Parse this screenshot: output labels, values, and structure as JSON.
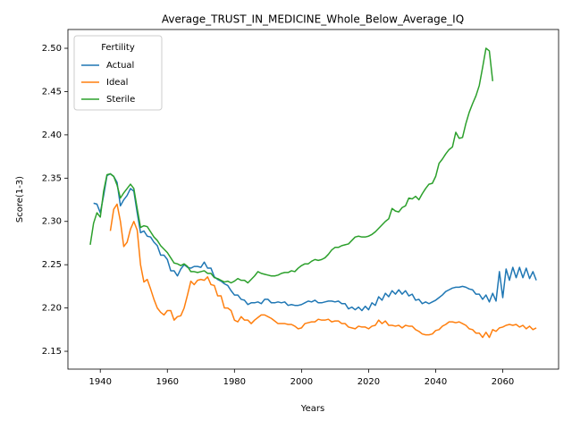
{
  "chart_data": {
    "type": "line",
    "title": "Average_TRUST_IN_MEDICINE_Whole_Below_Average_IQ",
    "xlabel": "Years",
    "ylabel": "Score(1-3)",
    "legend_title": "Fertility",
    "legend": "upper left",
    "xlim": [
      1930.35,
      2076.65
    ],
    "ylim": [
      2.1294,
      2.5217
    ],
    "xticks": [
      1940,
      1960,
      1980,
      2000,
      2020,
      2040,
      2060
    ],
    "yticks": [
      2.15,
      {
        "value": 2.2,
        "label": "2.20"
      },
      2.25,
      {
        "value": 2.3,
        "label": "2.30"
      },
      2.35,
      {
        "value": 2.4,
        "label": "2.40"
      },
      2.45,
      {
        "value": 2.5,
        "label": "2.50"
      }
    ],
    "x": [
      1937,
      1938,
      1939,
      1940,
      1941,
      1942,
      1943,
      1944,
      1945,
      1946,
      1947,
      1948,
      1949,
      1950,
      1951,
      1952,
      1953,
      1954,
      1955,
      1956,
      1957,
      1958,
      1959,
      1960,
      1961,
      1962,
      1963,
      1964,
      1965,
      1966,
      1967,
      1968,
      1969,
      1970,
      1971,
      1972,
      1973,
      1974,
      1975,
      1976,
      1977,
      1978,
      1979,
      1980,
      1981,
      1982,
      1983,
      1984,
      1985,
      1986,
      1987,
      1988,
      1989,
      1990,
      1991,
      1992,
      1993,
      1994,
      1995,
      1996,
      1997,
      1998,
      1999,
      2000,
      2001,
      2002,
      2003,
      2004,
      2005,
      2006,
      2007,
      2008,
      2009,
      2010,
      2011,
      2012,
      2013,
      2014,
      2015,
      2016,
      2017,
      2018,
      2019,
      2020,
      2021,
      2022,
      2023,
      2024,
      2025,
      2026,
      2027,
      2028,
      2029,
      2030,
      2031,
      2032,
      2033,
      2034,
      2035,
      2036,
      2037,
      2038,
      2039,
      2040,
      2041,
      2042,
      2043,
      2044,
      2045,
      2046,
      2047,
      2048,
      2049,
      2050,
      2051,
      2052,
      2053,
      2054,
      2055,
      2056,
      2057,
      2058,
      2059,
      2060,
      2061,
      2062,
      2063,
      2064,
      2065,
      2066,
      2067,
      2068,
      2069,
      2070
    ],
    "series": [
      {
        "name": "Actual",
        "color": "#1f77b4",
        "values": [
          null,
          2.321,
          2.32,
          2.31,
          2.33,
          2.353,
          2.355,
          2.352,
          2.345,
          2.318,
          2.325,
          2.33,
          2.338,
          2.335,
          2.31,
          2.287,
          2.289,
          2.283,
          2.282,
          2.276,
          2.272,
          2.261,
          2.261,
          2.256,
          2.243,
          2.243,
          2.237,
          2.245,
          2.25,
          2.247,
          2.246,
          2.248,
          2.248,
          2.247,
          2.253,
          2.246,
          2.246,
          2.236,
          2.233,
          2.231,
          2.228,
          2.226,
          2.22,
          2.215,
          2.215,
          2.21,
          2.209,
          2.204,
          2.206,
          2.206,
          2.207,
          2.205,
          2.21,
          2.21,
          2.206,
          2.206,
          2.207,
          2.206,
          2.207,
          2.203,
          2.204,
          2.203,
          2.203,
          2.204,
          2.206,
          2.208,
          2.207,
          2.209,
          2.206,
          2.206,
          2.207,
          2.208,
          2.208,
          2.207,
          2.208,
          2.205,
          2.205,
          2.199,
          2.201,
          2.198,
          2.201,
          2.197,
          2.202,
          2.198,
          2.206,
          2.203,
          2.213,
          2.209,
          2.217,
          2.213,
          2.22,
          2.216,
          2.221,
          2.216,
          2.22,
          2.214,
          2.216,
          2.209,
          2.21,
          2.205,
          2.207,
          2.205,
          2.207,
          2.209,
          2.212,
          2.215,
          2.219,
          2.221,
          2.223,
          2.224,
          2.224,
          2.225,
          2.224,
          2.222,
          2.221,
          2.216,
          2.216,
          2.21,
          2.215,
          2.207,
          2.217,
          2.208,
          2.242,
          2.212,
          2.245,
          2.232,
          2.247,
          2.235,
          2.247,
          2.235,
          2.246,
          2.234,
          2.242,
          2.232
        ]
      },
      {
        "name": "Ideal",
        "color": "#ff7f0e",
        "values": [
          null,
          null,
          null,
          null,
          null,
          null,
          2.289,
          2.314,
          2.32,
          2.3,
          2.271,
          2.276,
          2.291,
          2.3,
          2.29,
          2.25,
          2.23,
          2.233,
          2.222,
          2.21,
          2.2,
          2.195,
          2.192,
          2.197,
          2.197,
          2.186,
          2.19,
          2.191,
          2.2,
          2.215,
          2.231,
          2.227,
          2.232,
          2.233,
          2.232,
          2.236,
          2.227,
          2.226,
          2.214,
          2.214,
          2.2,
          2.2,
          2.197,
          2.186,
          2.184,
          2.19,
          2.186,
          2.186,
          2.182,
          2.186,
          2.189,
          2.192,
          2.192,
          2.19,
          2.188,
          2.185,
          2.182,
          2.182,
          2.182,
          2.181,
          2.181,
          2.179,
          2.176,
          2.177,
          2.182,
          2.183,
          2.184,
          2.184,
          2.187,
          2.186,
          2.186,
          2.187,
          2.184,
          2.185,
          2.185,
          2.182,
          2.182,
          2.178,
          2.177,
          2.176,
          2.179,
          2.178,
          2.178,
          2.176,
          2.179,
          2.18,
          2.186,
          2.182,
          2.185,
          2.18,
          2.18,
          2.179,
          2.18,
          2.177,
          2.18,
          2.179,
          2.179,
          2.175,
          2.173,
          2.17,
          2.169,
          2.169,
          2.17,
          2.174,
          2.175,
          2.179,
          2.181,
          2.184,
          2.184,
          2.183,
          2.184,
          2.182,
          2.18,
          2.176,
          2.175,
          2.171,
          2.171,
          2.166,
          2.172,
          2.166,
          2.175,
          2.173,
          2.177,
          2.178,
          2.18,
          2.181,
          2.18,
          2.181,
          2.178,
          2.18,
          2.176,
          2.179,
          2.175,
          2.177
        ]
      },
      {
        "name": "Sterile",
        "color": "#2ca02c",
        "values": [
          2.273,
          2.298,
          2.31,
          2.305,
          2.335,
          2.354,
          2.355,
          2.352,
          2.342,
          2.327,
          2.333,
          2.338,
          2.343,
          2.338,
          2.315,
          2.293,
          2.295,
          2.294,
          2.288,
          2.282,
          2.278,
          2.272,
          2.268,
          2.264,
          2.258,
          2.252,
          2.251,
          2.249,
          2.251,
          2.248,
          2.242,
          2.242,
          2.241,
          2.242,
          2.243,
          2.24,
          2.24,
          2.235,
          2.234,
          2.232,
          2.23,
          2.231,
          2.229,
          2.231,
          2.234,
          2.232,
          2.232,
          2.229,
          2.233,
          2.237,
          2.242,
          2.24,
          2.239,
          2.238,
          2.237,
          2.237,
          2.238,
          2.24,
          2.241,
          2.241,
          2.243,
          2.242,
          2.246,
          2.249,
          2.251,
          2.251,
          2.254,
          2.256,
          2.255,
          2.256,
          2.258,
          2.262,
          2.267,
          2.27,
          2.27,
          2.272,
          2.273,
          2.274,
          2.278,
          2.282,
          2.283,
          2.282,
          2.282,
          2.283,
          2.285,
          2.288,
          2.292,
          2.296,
          2.3,
          2.303,
          2.315,
          2.312,
          2.311,
          2.316,
          2.318,
          2.327,
          2.326,
          2.329,
          2.325,
          2.332,
          2.338,
          2.343,
          2.344,
          2.352,
          2.367,
          2.372,
          2.378,
          2.383,
          2.386,
          2.403,
          2.396,
          2.397,
          2.413,
          2.426,
          2.436,
          2.445,
          2.457,
          2.478,
          2.5,
          2.497,
          2.462,
          null,
          null,
          null,
          null,
          null,
          null,
          null,
          null,
          null,
          null,
          null,
          null,
          null
        ]
      }
    ]
  }
}
